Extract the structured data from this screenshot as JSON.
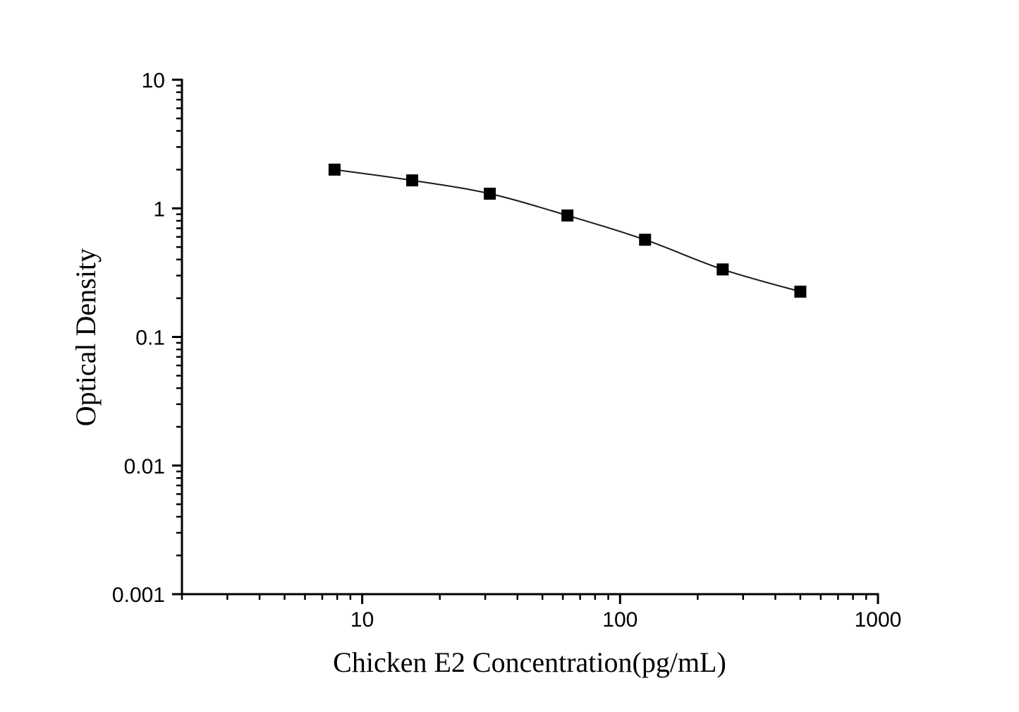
{
  "figure": {
    "background": "#ffffff"
  },
  "chart_data": {
    "type": "line",
    "title": "",
    "xlabel": "Chicken E2 Concentration(pg/mL)",
    "ylabel": "Optical Density",
    "x_scale": "log",
    "y_scale": "log",
    "xlim": [
      2,
      1000
    ],
    "ylim": [
      0.001,
      10
    ],
    "x_major_ticks": [
      10,
      100,
      1000
    ],
    "x_major_tick_labels": [
      "10",
      "100",
      "1000"
    ],
    "y_major_ticks": [
      10,
      1,
      0.1,
      0.01,
      0.001
    ],
    "y_major_tick_labels": [
      "10",
      "1",
      "0.1",
      "0.01",
      "0.001"
    ],
    "minor_tick_mantissas": [
      2,
      3,
      4,
      5,
      6,
      7,
      8,
      9
    ],
    "grid": false,
    "legend": false,
    "series": [
      {
        "marker": "filled-square",
        "marker_color": "#000000",
        "line_color": "#1a1a1a",
        "points": [
          {
            "x": 7.8125,
            "y": 2.0
          },
          {
            "x": 15.625,
            "y": 1.65
          },
          {
            "x": 31.25,
            "y": 1.3
          },
          {
            "x": 62.5,
            "y": 0.88
          },
          {
            "x": 125,
            "y": 0.57
          },
          {
            "x": 250,
            "y": 0.335
          },
          {
            "x": 500,
            "y": 0.225
          }
        ]
      }
    ]
  },
  "colors": {
    "axis": "#000000",
    "text": "#000000",
    "background": "#ffffff"
  }
}
